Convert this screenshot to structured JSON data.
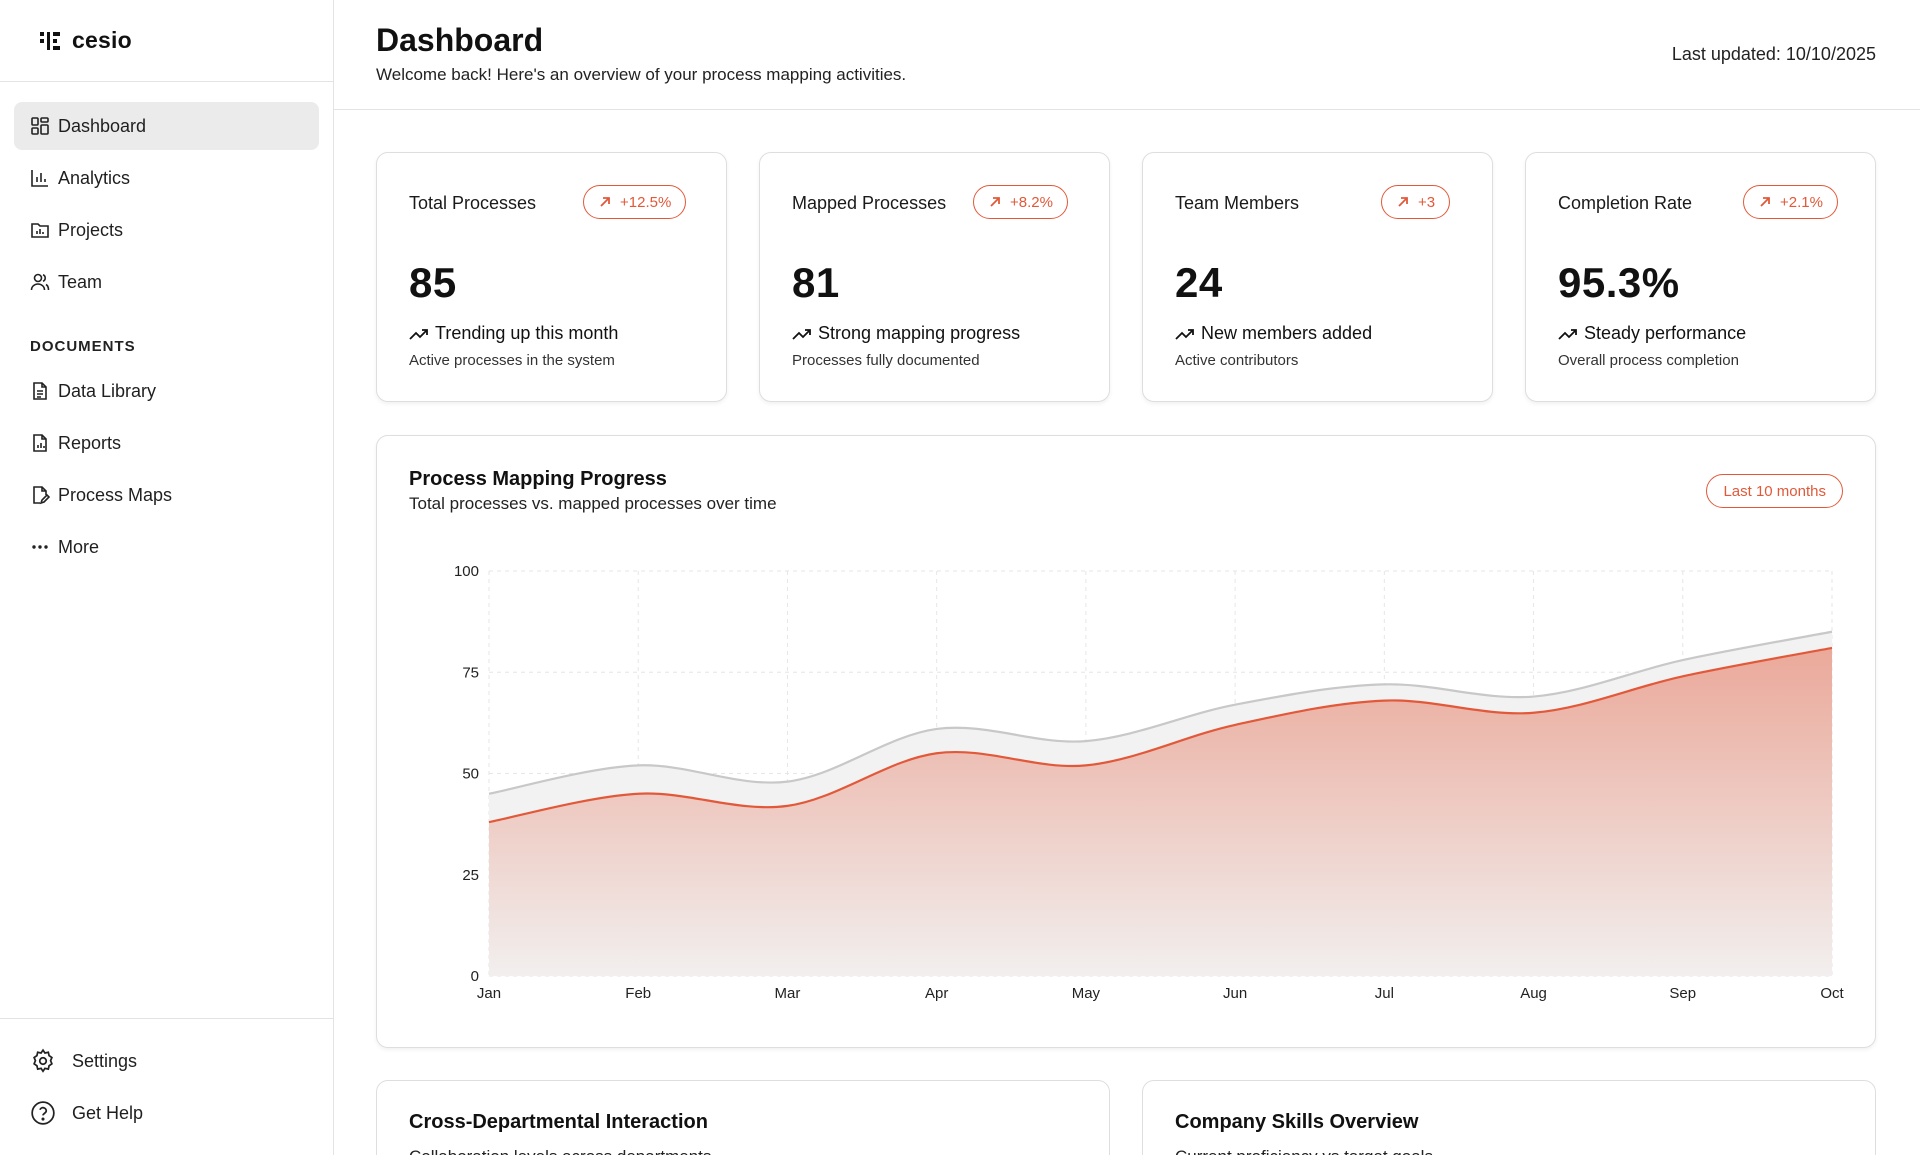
{
  "brand": {
    "name": "cesio"
  },
  "sidebar": {
    "items": [
      {
        "label": "Dashboard",
        "icon": "dashboard-icon",
        "active": true
      },
      {
        "label": "Analytics",
        "icon": "bar-chart-icon"
      },
      {
        "label": "Projects",
        "icon": "folder-chart-icon"
      },
      {
        "label": "Team",
        "icon": "users-icon"
      }
    ],
    "section_label": "DOCUMENTS",
    "doc_items": [
      {
        "label": "Data Library",
        "icon": "file-text-icon"
      },
      {
        "label": "Reports",
        "icon": "file-chart-icon"
      },
      {
        "label": "Process Maps",
        "icon": "file-pen-icon"
      },
      {
        "label": "More",
        "icon": "more-dots-icon"
      }
    ],
    "bottom_items": [
      {
        "label": "Settings",
        "icon": "gear-icon"
      },
      {
        "label": "Get Help",
        "icon": "help-circle-icon"
      }
    ]
  },
  "header": {
    "title": "Dashboard",
    "subtitle": "Welcome back! Here's an overview of your process mapping activities.",
    "last_updated": "Last updated: 10/10/2025"
  },
  "cards": [
    {
      "label": "Total Processes",
      "badge": "+12.5%",
      "value": "85",
      "trend": "Trending up this month",
      "desc": "Active processes in the system"
    },
    {
      "label": "Mapped Processes",
      "badge": "+8.2%",
      "value": "81",
      "trend": "Strong mapping progress",
      "desc": "Processes fully documented"
    },
    {
      "label": "Team Members",
      "badge": "+3",
      "value": "24",
      "trend": "New members added",
      "desc": "Active contributors"
    },
    {
      "label": "Completion Rate",
      "badge": "+2.1%",
      "value": "95.3%",
      "trend": "Steady performance",
      "desc": "Overall process completion"
    }
  ],
  "chart": {
    "title": "Process Mapping Progress",
    "subtitle": "Total processes vs. mapped processes over time",
    "range_label": "Last 10 months"
  },
  "chart_data": {
    "type": "area",
    "categories": [
      "Jan",
      "Feb",
      "Mar",
      "Apr",
      "May",
      "Jun",
      "Jul",
      "Aug",
      "Sep",
      "Oct"
    ],
    "series": [
      {
        "values": [
          45,
          52,
          48,
          61,
          58,
          67,
          72,
          69,
          78,
          85
        ],
        "color": "#c8c8c8"
      },
      {
        "values": [
          38,
          45,
          42,
          55,
          52,
          62,
          68,
          65,
          74,
          81
        ],
        "color": "#e2593a"
      }
    ],
    "ylim": [
      0,
      100
    ],
    "yticks": [
      0,
      25,
      50,
      75,
      100
    ],
    "grid": true,
    "colors": {
      "accent": "#e2593a",
      "total": "#c8c8c8"
    }
  },
  "bottom": [
    {
      "title": "Cross-Departmental Interaction",
      "subtitle": "Collaboration levels across departments"
    },
    {
      "title": "Company Skills Overview",
      "subtitle": "Current proficiency vs target goals"
    }
  ]
}
